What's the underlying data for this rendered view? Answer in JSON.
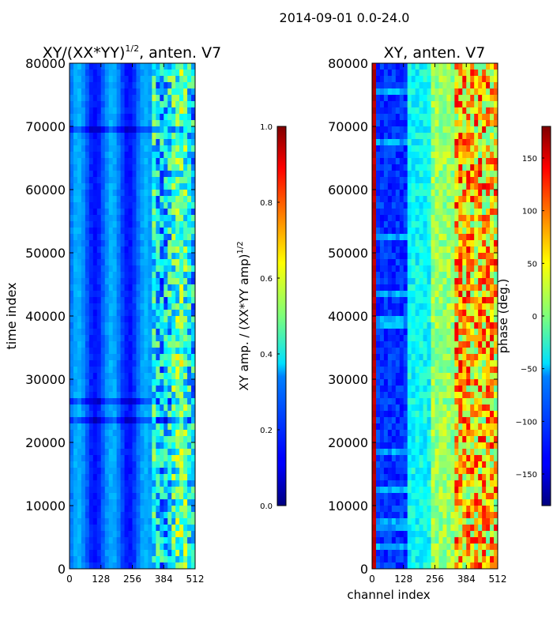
{
  "suptitle": "2014-09-01 0.0-24.0",
  "chart_data": [
    {
      "type": "heatmap",
      "title": "XY/(XX*YY)",
      "title_superscript": "1/2",
      "title_suffix": ", anten. V7",
      "xlabel": "",
      "ylabel": "time index",
      "xlim": [
        0,
        512
      ],
      "ylim": [
        0,
        80000
      ],
      "xticks": [
        0,
        128,
        256,
        384,
        512
      ],
      "yticks": [
        0,
        10000,
        20000,
        30000,
        40000,
        50000,
        60000,
        70000,
        80000
      ],
      "colormap": "jet",
      "colorbar": {
        "label": "XY amp. / (XX*YY amp)",
        "label_superscript": "1/2",
        "range": [
          0.0,
          1.0
        ],
        "ticks": [
          "0.0",
          "0.2",
          "0.4",
          "0.6",
          "0.8",
          "1.0"
        ],
        "tick_values": [
          0.0,
          0.2,
          0.4,
          0.6,
          0.8,
          1.0
        ]
      }
    },
    {
      "type": "heatmap",
      "title": "XY, anten. V7",
      "xlabel": "channel index",
      "ylabel": "",
      "xlim": [
        0,
        512
      ],
      "ylim": [
        0,
        80000
      ],
      "xticks": [
        0,
        128,
        256,
        384,
        512
      ],
      "yticks": [
        0,
        10000,
        20000,
        30000,
        40000,
        50000,
        60000,
        70000,
        80000
      ],
      "colormap": "jet",
      "colorbar": {
        "label": "phase (deg.)",
        "range": [
          -180,
          180
        ],
        "ticks": [
          "−150",
          "−100",
          "−50",
          "0",
          "50",
          "100",
          "150"
        ],
        "tick_values": [
          -150,
          -100,
          -50,
          0,
          50,
          100,
          150
        ]
      }
    }
  ]
}
